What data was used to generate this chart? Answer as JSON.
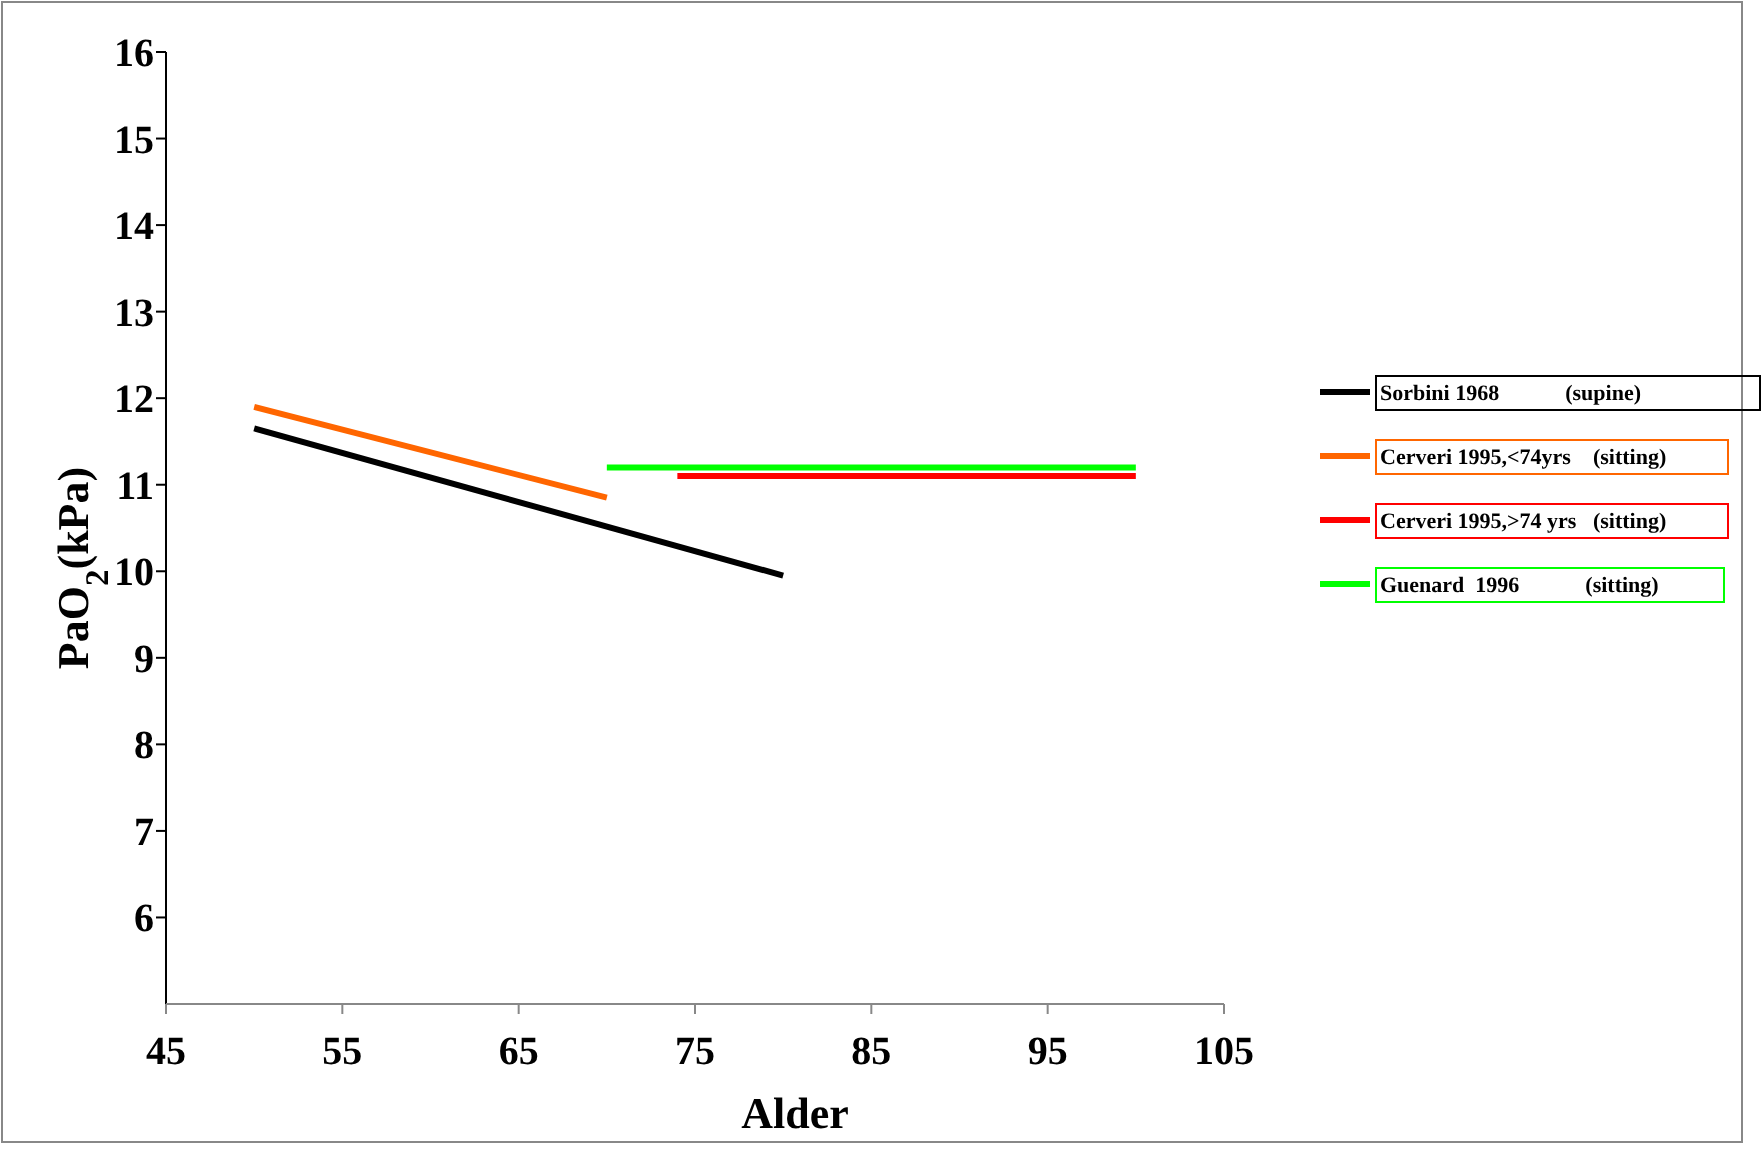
{
  "chart_data": {
    "type": "line",
    "xlabel": "Alder",
    "ylabel": "PaO$_{2}$(kPa)",
    "xlim": [
      45,
      105
    ],
    "xticks": [
      45,
      55,
      65,
      75,
      85,
      95,
      105
    ],
    "ylim": [
      5,
      16
    ],
    "yticks": [
      6,
      7,
      8,
      9,
      10,
      11,
      12,
      13,
      14,
      15,
      16
    ],
    "grid": false,
    "legend": "right",
    "marker": "none",
    "line_style": "solid",
    "series": [
      {
        "name": "Sorbini 1968            (supine)",
        "color": "#000000",
        "x": [
          50,
          80
        ],
        "values": [
          11.65,
          9.95
        ]
      },
      {
        "name": "Cerveri 1995,<74yrs    (sitting)",
        "color": "#ff6600",
        "x": [
          50,
          70
        ],
        "values": [
          11.9,
          10.85
        ]
      },
      {
        "name": "Cerveri 1995,>74 yrs   (sitting)",
        "color": "#ff0000",
        "x": [
          74,
          100
        ],
        "values": [
          11.1,
          11.1
        ]
      },
      {
        "name": "Guenard  1996            (sitting)",
        "color": "#00ff00",
        "x": [
          70,
          100
        ],
        "values": [
          11.2,
          11.2
        ]
      }
    ]
  }
}
